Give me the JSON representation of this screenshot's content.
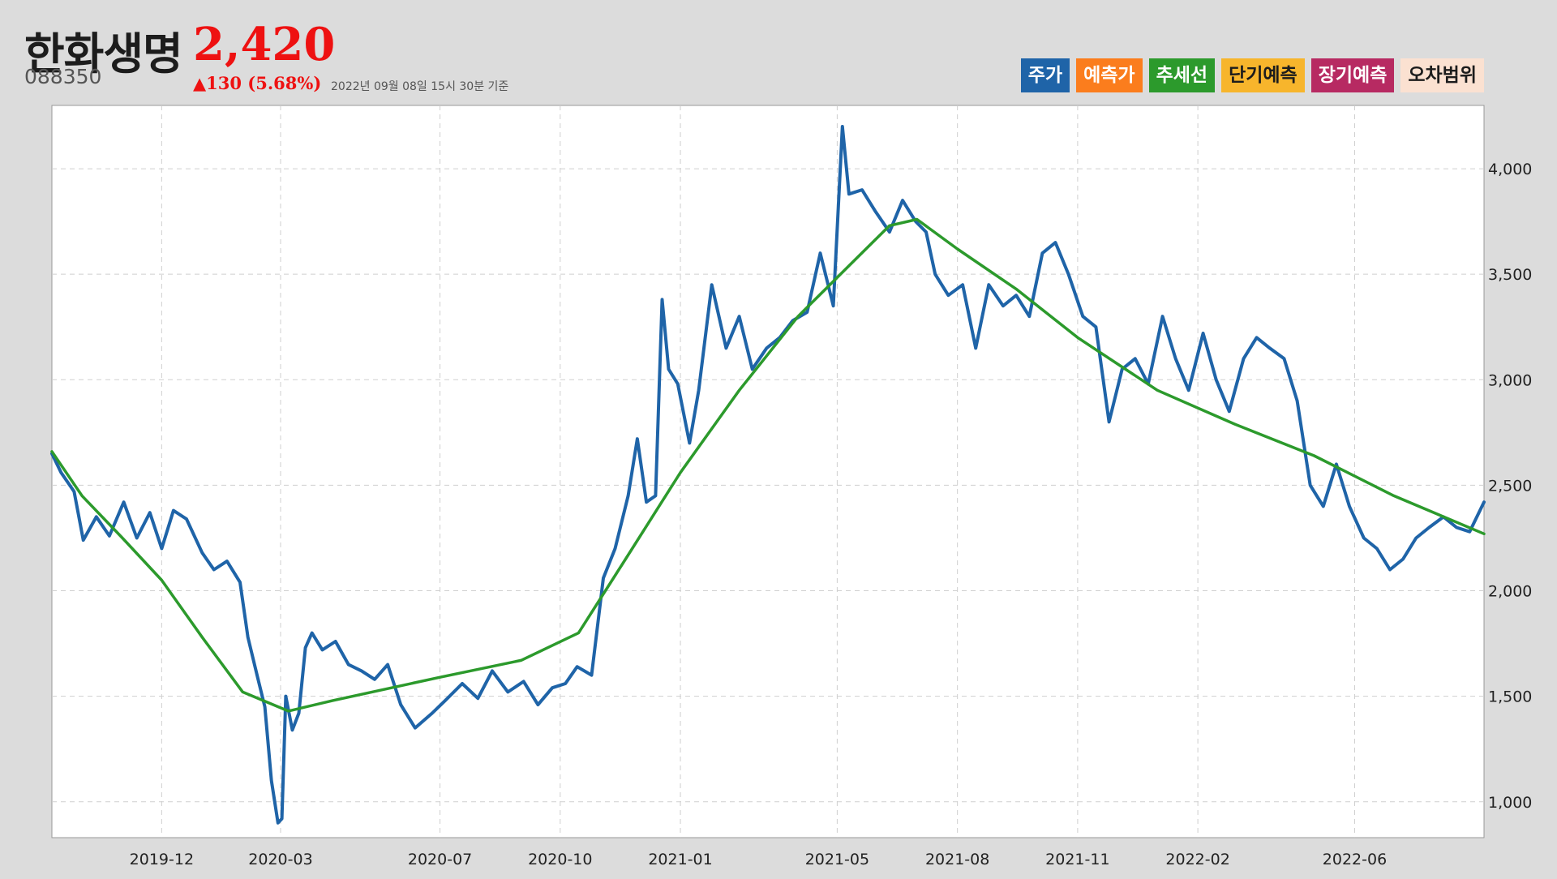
{
  "header": {
    "name": "한화생명",
    "price": "2,420",
    "code": "088350",
    "change": "▲130 (5.68%)",
    "as_of": "2022년 09월 08일 15시 30분 기준"
  },
  "legend": [
    {
      "label": "주가",
      "color": "#1f64a8",
      "text_color": "#ffffff"
    },
    {
      "label": "예측가",
      "color": "#fb7d1d",
      "text_color": "#ffffff"
    },
    {
      "label": "추세선",
      "color": "#2c9a2c",
      "text_color": "#ffffff"
    },
    {
      "label": "단기예측",
      "color": "#f7b52c",
      "text_color": "#1c1c1c"
    },
    {
      "label": "장기예측",
      "color": "#b72a62",
      "text_color": "#ffffff"
    },
    {
      "label": "오차범위",
      "color": "#fbe1d1",
      "text_color": "#1c1c1c"
    }
  ],
  "chart_data": {
    "type": "line",
    "x_range": [
      "2019-09-08",
      "2022-09-08"
    ],
    "ylim": [
      830,
      4300
    ],
    "grid": true,
    "y_ticks": [
      1000,
      1500,
      2000,
      2500,
      3000,
      3500,
      4000
    ],
    "y_tick_labels": [
      "1,000",
      "1,500",
      "2,000",
      "2,500",
      "3,000",
      "3,500",
      "4,000"
    ],
    "x_ticks": [
      "2019-12-01",
      "2020-03-01",
      "2020-07-01",
      "2020-10-01",
      "2021-01-01",
      "2021-05-01",
      "2021-08-01",
      "2021-11-01",
      "2022-02-01",
      "2022-06-01"
    ],
    "x_tick_labels": [
      "2019-12",
      "2020-03",
      "2020-07",
      "2020-10",
      "2021-01",
      "2021-05",
      "2021-08",
      "2021-11",
      "2022-02",
      "2022-06"
    ],
    "series": [
      {
        "name": "주가",
        "color": "#1f64a8",
        "points": [
          [
            "2019-09-08",
            2650
          ],
          [
            "2019-09-15",
            2560
          ],
          [
            "2019-09-25",
            2470
          ],
          [
            "2019-10-02",
            2240
          ],
          [
            "2019-10-12",
            2350
          ],
          [
            "2019-10-22",
            2260
          ],
          [
            "2019-11-02",
            2420
          ],
          [
            "2019-11-12",
            2250
          ],
          [
            "2019-11-22",
            2370
          ],
          [
            "2019-12-01",
            2200
          ],
          [
            "2019-12-10",
            2380
          ],
          [
            "2019-12-20",
            2340
          ],
          [
            "2020-01-01",
            2180
          ],
          [
            "2020-01-10",
            2100
          ],
          [
            "2020-01-20",
            2140
          ],
          [
            "2020-01-30",
            2040
          ],
          [
            "2020-02-05",
            1780
          ],
          [
            "2020-02-12",
            1600
          ],
          [
            "2020-02-18",
            1450
          ],
          [
            "2020-02-23",
            1100
          ],
          [
            "2020-02-28",
            900
          ],
          [
            "2020-03-02",
            920
          ],
          [
            "2020-03-05",
            1500
          ],
          [
            "2020-03-10",
            1340
          ],
          [
            "2020-03-15",
            1420
          ],
          [
            "2020-03-20",
            1730
          ],
          [
            "2020-03-25",
            1800
          ],
          [
            "2020-04-02",
            1720
          ],
          [
            "2020-04-12",
            1760
          ],
          [
            "2020-04-22",
            1650
          ],
          [
            "2020-05-02",
            1620
          ],
          [
            "2020-05-12",
            1580
          ],
          [
            "2020-05-22",
            1650
          ],
          [
            "2020-06-01",
            1460
          ],
          [
            "2020-06-12",
            1350
          ],
          [
            "2020-06-25",
            1420
          ],
          [
            "2020-07-05",
            1480
          ],
          [
            "2020-07-18",
            1560
          ],
          [
            "2020-07-30",
            1490
          ],
          [
            "2020-08-10",
            1620
          ],
          [
            "2020-08-22",
            1520
          ],
          [
            "2020-09-03",
            1570
          ],
          [
            "2020-09-14",
            1460
          ],
          [
            "2020-09-25",
            1540
          ],
          [
            "2020-10-05",
            1560
          ],
          [
            "2020-10-14",
            1640
          ],
          [
            "2020-10-25",
            1600
          ],
          [
            "2020-11-03",
            2060
          ],
          [
            "2020-11-12",
            2200
          ],
          [
            "2020-11-22",
            2450
          ],
          [
            "2020-11-29",
            2720
          ],
          [
            "2020-12-06",
            2420
          ],
          [
            "2020-12-13",
            2450
          ],
          [
            "2020-12-18",
            3380
          ],
          [
            "2020-12-23",
            3050
          ],
          [
            "2020-12-30",
            2980
          ],
          [
            "2021-01-08",
            2700
          ],
          [
            "2021-01-15",
            2950
          ],
          [
            "2021-01-25",
            3450
          ],
          [
            "2021-02-05",
            3150
          ],
          [
            "2021-02-15",
            3300
          ],
          [
            "2021-02-25",
            3050
          ],
          [
            "2021-03-08",
            3150
          ],
          [
            "2021-03-18",
            3200
          ],
          [
            "2021-03-28",
            3280
          ],
          [
            "2021-04-08",
            3320
          ],
          [
            "2021-04-18",
            3600
          ],
          [
            "2021-04-28",
            3350
          ],
          [
            "2021-05-05",
            4200
          ],
          [
            "2021-05-10",
            3880
          ],
          [
            "2021-05-20",
            3900
          ],
          [
            "2021-05-30",
            3800
          ],
          [
            "2021-06-10",
            3700
          ],
          [
            "2021-06-20",
            3850
          ],
          [
            "2021-06-30",
            3750
          ],
          [
            "2021-07-08",
            3700
          ],
          [
            "2021-07-15",
            3500
          ],
          [
            "2021-07-25",
            3400
          ],
          [
            "2021-08-05",
            3450
          ],
          [
            "2021-08-15",
            3150
          ],
          [
            "2021-08-25",
            3450
          ],
          [
            "2021-09-05",
            3350
          ],
          [
            "2021-09-15",
            3400
          ],
          [
            "2021-09-25",
            3300
          ],
          [
            "2021-10-05",
            3600
          ],
          [
            "2021-10-15",
            3650
          ],
          [
            "2021-10-25",
            3500
          ],
          [
            "2021-11-05",
            3300
          ],
          [
            "2021-11-15",
            3250
          ],
          [
            "2021-11-25",
            2800
          ],
          [
            "2021-12-05",
            3050
          ],
          [
            "2021-12-15",
            3100
          ],
          [
            "2021-12-25",
            2980
          ],
          [
            "2022-01-05",
            3300
          ],
          [
            "2022-01-15",
            3100
          ],
          [
            "2022-01-25",
            2950
          ],
          [
            "2022-02-05",
            3220
          ],
          [
            "2022-02-15",
            3000
          ],
          [
            "2022-02-25",
            2850
          ],
          [
            "2022-03-08",
            3100
          ],
          [
            "2022-03-18",
            3200
          ],
          [
            "2022-03-28",
            3150
          ],
          [
            "2022-04-08",
            3100
          ],
          [
            "2022-04-18",
            2900
          ],
          [
            "2022-04-28",
            2500
          ],
          [
            "2022-05-08",
            2400
          ],
          [
            "2022-05-18",
            2600
          ],
          [
            "2022-05-28",
            2400
          ],
          [
            "2022-06-08",
            2250
          ],
          [
            "2022-06-18",
            2200
          ],
          [
            "2022-06-28",
            2100
          ],
          [
            "2022-07-08",
            2150
          ],
          [
            "2022-07-18",
            2250
          ],
          [
            "2022-07-28",
            2300
          ],
          [
            "2022-08-08",
            2350
          ],
          [
            "2022-08-18",
            2300
          ],
          [
            "2022-08-28",
            2280
          ],
          [
            "2022-09-08",
            2420
          ]
        ]
      },
      {
        "name": "추세선",
        "color": "#2c9a2c",
        "points": [
          [
            "2019-09-08",
            2660
          ],
          [
            "2019-10-01",
            2450
          ],
          [
            "2019-11-01",
            2250
          ],
          [
            "2019-12-01",
            2050
          ],
          [
            "2020-01-01",
            1780
          ],
          [
            "2020-02-01",
            1520
          ],
          [
            "2020-03-07",
            1430
          ],
          [
            "2020-04-10",
            1480
          ],
          [
            "2020-07-01",
            1590
          ],
          [
            "2020-09-01",
            1670
          ],
          [
            "2020-10-15",
            1800
          ],
          [
            "2020-11-20",
            2150
          ],
          [
            "2021-01-01",
            2560
          ],
          [
            "2021-02-15",
            2950
          ],
          [
            "2021-04-01",
            3300
          ],
          [
            "2021-05-10",
            3540
          ],
          [
            "2021-06-10",
            3730
          ],
          [
            "2021-07-01",
            3760
          ],
          [
            "2021-08-01",
            3620
          ],
          [
            "2021-09-15",
            3430
          ],
          [
            "2021-11-01",
            3200
          ],
          [
            "2022-01-01",
            2950
          ],
          [
            "2022-03-01",
            2790
          ],
          [
            "2022-05-01",
            2640
          ],
          [
            "2022-07-01",
            2450
          ],
          [
            "2022-09-08",
            2270
          ]
        ]
      }
    ]
  }
}
